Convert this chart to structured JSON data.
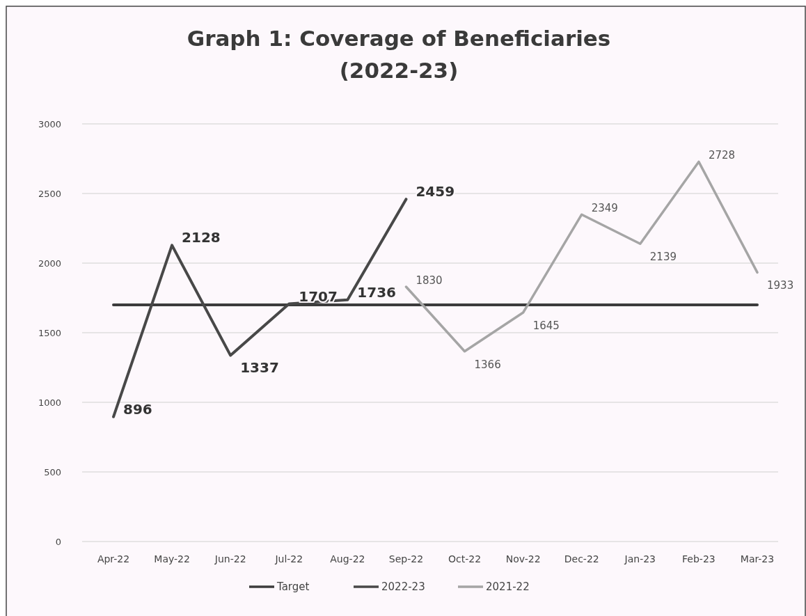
{
  "chart_data": {
    "type": "line",
    "title": "Graph 1: Coverage of Beneficiaries\n(2022-23)",
    "categories": [
      "Apr-22",
      "May-22",
      "Jun-22",
      "Jul-22",
      "Aug-22",
      "Sep-22",
      "Oct-22",
      "Nov-22",
      "Dec-22",
      "Jan-23",
      "Feb-23",
      "Mar-23"
    ],
    "series": [
      {
        "name": "Target",
        "color": "#3c3c3c",
        "values": [
          1700,
          1700,
          1700,
          1700,
          1700,
          1700,
          1700,
          1700,
          1700,
          1700,
          1700,
          1700
        ]
      },
      {
        "name": "2022-23",
        "color": "#484848",
        "values": [
          896,
          2128,
          1337,
          1707,
          1736,
          2459,
          null,
          null,
          null,
          null,
          null,
          null
        ],
        "value_labels": [
          "896",
          "2128",
          "1337",
          "1707",
          "1736",
          "2459",
          null,
          null,
          null,
          null,
          null,
          null
        ]
      },
      {
        "name": "2021-22",
        "color": "#a5a5a5",
        "values": [
          null,
          null,
          null,
          null,
          null,
          1830,
          1366,
          1645,
          2349,
          2139,
          2728,
          1933
        ],
        "value_labels": [
          null,
          null,
          null,
          null,
          null,
          "1830",
          "1366",
          "1645",
          "2349",
          "2139",
          "2728",
          "1933"
        ]
      }
    ],
    "ylim": [
      0,
      3000
    ],
    "yticks": [
      0,
      500,
      1000,
      1500,
      2000,
      2500,
      3000
    ],
    "grid": "y",
    "legend": "bottom",
    "marker": "none"
  }
}
